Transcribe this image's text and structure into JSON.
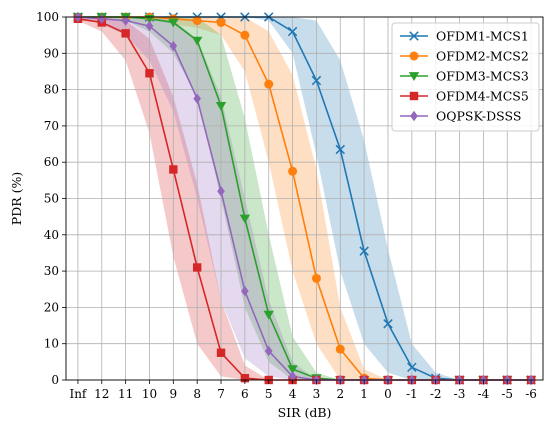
{
  "chart_data": {
    "type": "line",
    "title": "",
    "xlabel": "SIR (dB)",
    "ylabel": "PDR (%)",
    "ylim": [
      0,
      100
    ],
    "yticks": [
      0,
      10,
      20,
      30,
      40,
      50,
      60,
      70,
      80,
      90,
      100
    ],
    "categories": [
      "Inf",
      "12",
      "11",
      "10",
      "9",
      "8",
      "7",
      "6",
      "5",
      "4",
      "3",
      "2",
      "1",
      "0",
      "-1",
      "-2",
      "-3",
      "-4",
      "-5",
      "-6"
    ],
    "grid": true,
    "legend_position": "top-right",
    "series": [
      {
        "name": "OFDM1-MCS1",
        "color": "#1f77b4",
        "marker": "x",
        "values": [
          100,
          100,
          100,
          100,
          100,
          100,
          100,
          100,
          100,
          96,
          82.5,
          63.5,
          35.5,
          15.5,
          3.5,
          0.5,
          0,
          0,
          0,
          0
        ],
        "band_lower": [
          100,
          100,
          100,
          100,
          100,
          100,
          100,
          100,
          99,
          90,
          62,
          30,
          10,
          2,
          0,
          0,
          0,
          0,
          0,
          0
        ],
        "band_upper": [
          100,
          100,
          100,
          100,
          100,
          100,
          100,
          100,
          100,
          100,
          99,
          88,
          66,
          36,
          10,
          2,
          0,
          0,
          0,
          0
        ]
      },
      {
        "name": "OFDM2-MCS2",
        "color": "#ff7f0e",
        "marker": "circle",
        "values": [
          100,
          100,
          100,
          100,
          99.5,
          99,
          98.5,
          95,
          81.5,
          57.5,
          28,
          8.5,
          0.5,
          0,
          0,
          0,
          0,
          0,
          0,
          0
        ],
        "band_lower": [
          100,
          100,
          100,
          100,
          98,
          97,
          95,
          85,
          60,
          30,
          10,
          0,
          0,
          0,
          0,
          0,
          0,
          0,
          0,
          0
        ],
        "band_upper": [
          100,
          100,
          100,
          100,
          100,
          100,
          100,
          100,
          96,
          84,
          58,
          20,
          3,
          0,
          0,
          0,
          0,
          0,
          0,
          0
        ]
      },
      {
        "name": "OFDM3-MCS3",
        "color": "#2ca02c",
        "marker": "triangle-down",
        "values": [
          100,
          100,
          100,
          99.5,
          98.5,
          93.5,
          75.5,
          44.5,
          18,
          3,
          0.5,
          0,
          0,
          0,
          0,
          0,
          0,
          0,
          0,
          0
        ],
        "band_lower": [
          100,
          100,
          99,
          96,
          90,
          78,
          50,
          20,
          5,
          0,
          0,
          0,
          0,
          0,
          0,
          0,
          0,
          0,
          0,
          0
        ],
        "band_upper": [
          100,
          100,
          100,
          100,
          100,
          100,
          95,
          72,
          40,
          12,
          2,
          0,
          0,
          0,
          0,
          0,
          0,
          0,
          0,
          0
        ]
      },
      {
        "name": "OFDM4-MCS5",
        "color": "#d62728",
        "marker": "square",
        "values": [
          99.5,
          98.5,
          95.5,
          84.5,
          58,
          31,
          7.5,
          0.5,
          0,
          0,
          0,
          0,
          0,
          0,
          0,
          0,
          0,
          0,
          0,
          0
        ],
        "band_lower": [
          99,
          96,
          88,
          68,
          34,
          10,
          1,
          0,
          0,
          0,
          0,
          0,
          0,
          0,
          0,
          0,
          0,
          0,
          0,
          0
        ],
        "band_upper": [
          100,
          100,
          99,
          94,
          78,
          54,
          22,
          4,
          0,
          0,
          0,
          0,
          0,
          0,
          0,
          0,
          0,
          0,
          0,
          0
        ]
      },
      {
        "name": "OQPSK-DSSS",
        "color": "#9467bd",
        "marker": "diamond",
        "values": [
          100,
          99.5,
          99,
          97.5,
          92,
          77.5,
          52,
          24.5,
          8,
          1,
          0,
          0,
          0,
          0,
          0,
          0,
          0,
          0,
          0,
          0
        ],
        "band_lower": [
          100,
          98,
          95,
          88,
          74,
          50,
          22,
          6,
          1,
          0,
          0,
          0,
          0,
          0,
          0,
          0,
          0,
          0,
          0,
          0
        ],
        "band_upper": [
          100,
          100,
          100,
          100,
          99,
          94,
          78,
          50,
          22,
          5,
          0,
          0,
          0,
          0,
          0,
          0,
          0,
          0,
          0,
          0
        ]
      }
    ]
  }
}
